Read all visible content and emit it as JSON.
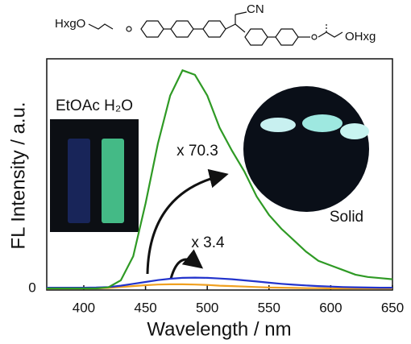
{
  "chart_data": {
    "type": "line",
    "x_label": "Wavelength / nm",
    "y_label": "FL Intensity / a.u.",
    "annotations": [
      "x 70.3",
      "x 3.4",
      "Solid",
      "EtOAc H₂O"
    ],
    "structure_labels": [
      "HxgO",
      "CN",
      "OHxg"
    ],
    "x": [
      370,
      380,
      390,
      400,
      410,
      420,
      430,
      440,
      450,
      460,
      470,
      480,
      490,
      500,
      510,
      520,
      530,
      540,
      550,
      560,
      570,
      580,
      590,
      600,
      610,
      620,
      630,
      640,
      650
    ],
    "series": [
      {
        "color": "#2f9a25",
        "values": [
          0,
          0,
          0,
          0,
          0,
          0.005,
          0.035,
          0.14,
          0.37,
          0.63,
          0.84,
          0.95,
          0.93,
          0.84,
          0.7,
          0.6,
          0.51,
          0.4,
          0.32,
          0.26,
          0.21,
          0.16,
          0.12,
          0.1,
          0.08,
          0.06,
          0.05,
          0.045,
          0.04
        ]
      },
      {
        "color": "#2233cc",
        "values": [
          0.003,
          0.003,
          0.003,
          0.003,
          0.004,
          0.006,
          0.012,
          0.02,
          0.028,
          0.036,
          0.042,
          0.046,
          0.047,
          0.046,
          0.043,
          0.04,
          0.035,
          0.03,
          0.025,
          0.02,
          0.016,
          0.013,
          0.01,
          0.008,
          0.006,
          0.005,
          0.004,
          0.003,
          0.003
        ]
      },
      {
        "color": "#f0a020",
        "values": [
          0,
          0,
          0,
          0,
          0,
          0.002,
          0.006,
          0.01,
          0.014,
          0.017,
          0.018,
          0.018,
          0.017,
          0.015,
          0.012,
          0.01,
          0.008,
          0.006,
          0.004,
          0.003,
          0.002,
          0.001,
          0.001,
          0,
          0,
          0,
          0,
          0,
          0
        ]
      }
    ],
    "xlim": [
      370,
      650
    ],
    "xticks": [
      400,
      450,
      500,
      550,
      600,
      650
    ],
    "ylim": [
      0,
      1
    ],
    "yticks": [
      0
    ]
  }
}
